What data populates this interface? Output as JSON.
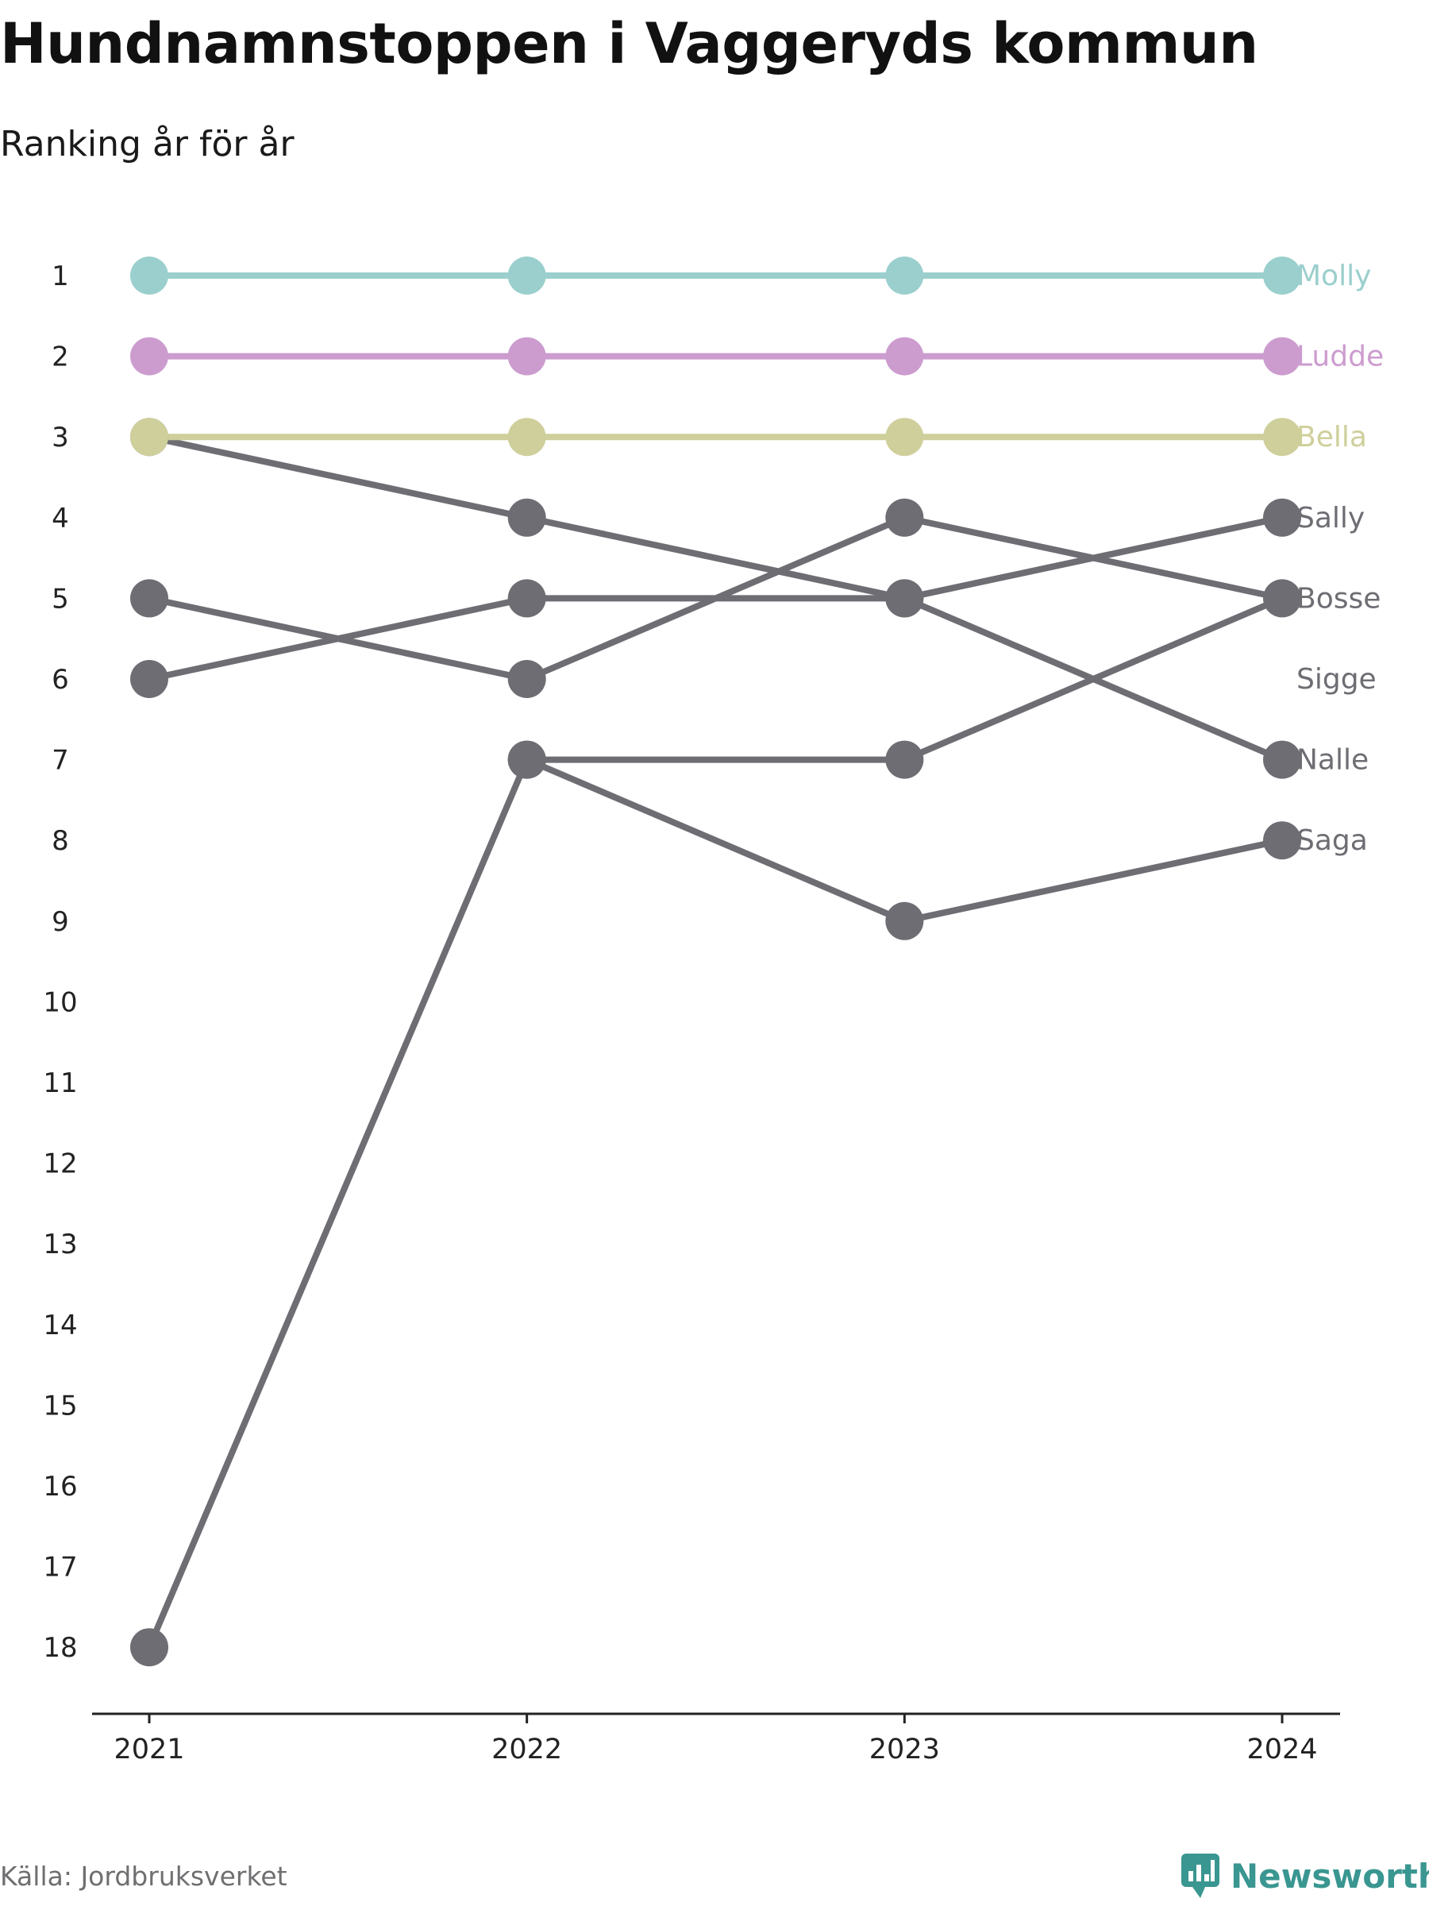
{
  "title": "Hundnamnstoppen i Vaggeryds kommun",
  "subtitle": "Ranking år för år",
  "source": "Källa: Jordbruksverket",
  "brand": {
    "name": "Newsworthy",
    "icon": "newsworthy-logo-icon",
    "color": "#3a9690"
  },
  "chart_data": {
    "type": "line",
    "subtype": "bump",
    "x": [
      "2021",
      "2022",
      "2023",
      "2024"
    ],
    "y_ticks": [
      "1",
      "2",
      "3",
      "4",
      "5",
      "6",
      "7",
      "8",
      "9",
      "10",
      "11",
      "12",
      "13",
      "14",
      "15",
      "16",
      "17",
      "18"
    ],
    "y_reversed": true,
    "ylim": [
      1,
      18
    ],
    "grid": false,
    "labels_at_line_end": true,
    "series": [
      {
        "name": "Molly",
        "values": [
          1,
          1,
          1,
          1
        ],
        "color": "#9acfcd"
      },
      {
        "name": "Ludde",
        "values": [
          2,
          2,
          2,
          2
        ],
        "color": "#cc9ccf"
      },
      {
        "name": "Bella",
        "values": [
          3,
          3,
          3,
          3
        ],
        "color": "#cfcf9c"
      },
      {
        "name": "Sally",
        "values": [
          6,
          5,
          5,
          4
        ],
        "color": "#6e6d73"
      },
      {
        "name": "Bosse",
        "values": [
          5,
          6,
          4,
          5
        ],
        "color": "#6e6d73"
      },
      {
        "name": "Sigge",
        "values": [
          18,
          7,
          7,
          5
        ],
        "color": "#6e6d73"
      },
      {
        "name": "Nalle",
        "values": [
          3,
          4,
          5,
          7
        ],
        "color": "#6e6d73"
      },
      {
        "name": "Saga",
        "values": [
          null,
          7,
          9,
          8
        ],
        "color": "#6e6d73"
      }
    ]
  }
}
